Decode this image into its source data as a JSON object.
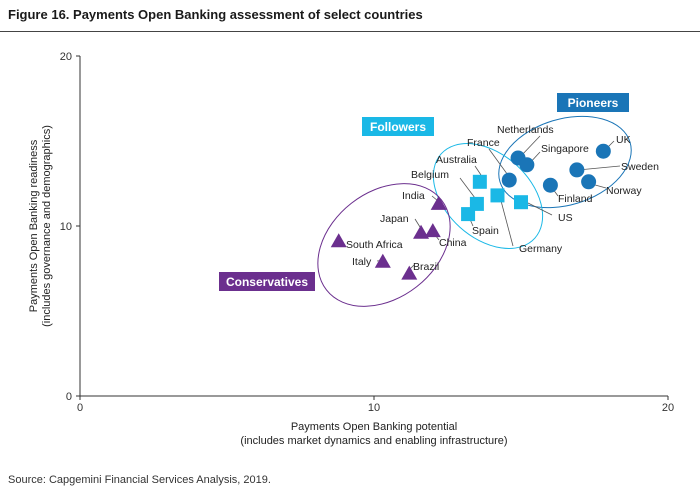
{
  "figure_title": "Figure 16. Payments Open Banking assessment of select countries",
  "source": "Source: Capgemini Financial Services Analysis, 2019.",
  "colors": {
    "pioneers": "#1a75b7",
    "followers": "#1ab8e6",
    "conservatives": "#6b2f8e",
    "leader_line": "#555555"
  },
  "chart_data": {
    "type": "scatter",
    "title": "Figure 16. Payments Open Banking assessment of select countries",
    "xlabel": [
      "Payments Open Banking potential",
      "(includes market dynamics and enabling infrastructure)"
    ],
    "ylabel": [
      "Payments Open Banking readiness",
      "(includes governance and demographics)"
    ],
    "xlim": [
      0,
      20
    ],
    "ylim": [
      0,
      20
    ],
    "xticks": [
      "0",
      "10",
      "20"
    ],
    "yticks": [
      "0",
      "10",
      "20"
    ],
    "grid": false,
    "groups": [
      {
        "name": "Pioneers",
        "marker": "circle",
        "color": "#1a75b7",
        "points": [
          {
            "label": "UK",
            "x": 17.8,
            "y": 14.4
          },
          {
            "label": "Netherlands",
            "x": 14.9,
            "y": 14.0
          },
          {
            "label": "Singapore",
            "x": 15.2,
            "y": 13.6
          },
          {
            "label": "Sweden",
            "x": 16.9,
            "y": 13.3
          },
          {
            "label": "France",
            "x": 14.6,
            "y": 12.7
          },
          {
            "label": "Norway",
            "x": 17.3,
            "y": 12.6
          },
          {
            "label": "Finland",
            "x": 16.0,
            "y": 12.4
          }
        ]
      },
      {
        "name": "Followers",
        "marker": "square",
        "color": "#1ab8e6",
        "points": [
          {
            "label": "Australia",
            "x": 13.6,
            "y": 12.6
          },
          {
            "label": "Germany",
            "x": 14.2,
            "y": 11.8
          },
          {
            "label": "Belgium",
            "x": 13.5,
            "y": 11.3
          },
          {
            "label": "US",
            "x": 15.0,
            "y": 11.4
          },
          {
            "label": "Spain",
            "x": 13.2,
            "y": 10.7
          }
        ]
      },
      {
        "name": "Conservatives",
        "marker": "triangle",
        "color": "#6b2f8e",
        "points": [
          {
            "label": "India",
            "x": 12.2,
            "y": 11.3
          },
          {
            "label": "Japan",
            "x": 11.6,
            "y": 9.6
          },
          {
            "label": "China",
            "x": 12.0,
            "y": 9.7
          },
          {
            "label": "South Africa",
            "x": 8.8,
            "y": 9.1
          },
          {
            "label": "Italy",
            "x": 10.3,
            "y": 7.9
          },
          {
            "label": "Brazil",
            "x": 11.2,
            "y": 7.2
          }
        ]
      }
    ]
  }
}
